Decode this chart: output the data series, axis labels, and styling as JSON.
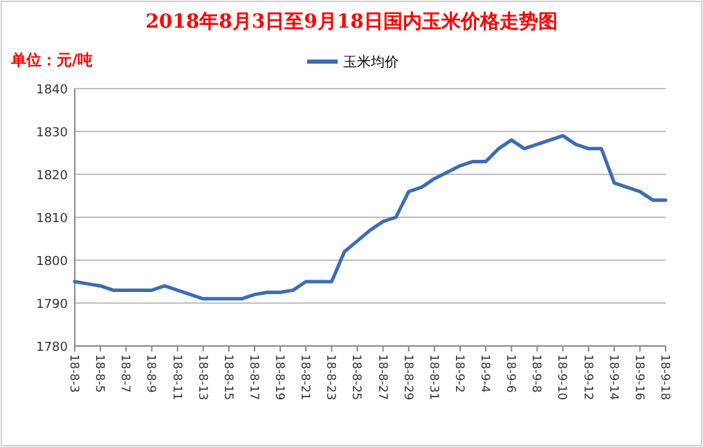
{
  "chart_data": {
    "type": "line",
    "title": "2018年8月3日至9月18日国内玉米价格走势图",
    "ylabel": "单位：元/吨",
    "categories": [
      "18-8-3",
      null,
      "18-8-5",
      null,
      "18-8-7",
      null,
      "18-8-9",
      null,
      "18-8-11",
      null,
      "18-8-13",
      null,
      "18-8-15",
      null,
      "18-8-17",
      null,
      "18-8-19",
      null,
      "18-8-21",
      null,
      "18-8-23",
      null,
      "18-8-25",
      null,
      "18-8-27",
      null,
      "18-8-29",
      null,
      "18-8-31",
      null,
      "18-9-2",
      null,
      "18-9-4",
      null,
      "18-9-6",
      null,
      "18-9-8",
      null,
      "18-9-10",
      null,
      "18-9-12",
      null,
      "18-9-14",
      null,
      "18-9-16",
      null,
      "18-9-18"
    ],
    "series": [
      {
        "name": "玉米均价",
        "color": "#3d6cb4",
        "values": [
          1795,
          1794.5,
          1794,
          1793,
          1793,
          1793,
          1793,
          1794,
          1793,
          1792,
          1791,
          1791,
          1791,
          1791,
          1792,
          1792.5,
          1792.5,
          1793,
          1795,
          1795,
          1795,
          1802,
          1804.5,
          1807,
          1809,
          1810,
          1816,
          1817,
          1819,
          1820.5,
          1822,
          1823,
          1823,
          1826,
          1828,
          1826,
          1827,
          1828,
          1829,
          1827,
          1826,
          1826,
          1818,
          1817,
          1816,
          1814,
          1814
        ]
      }
    ],
    "ylim": [
      1780,
      1840
    ],
    "yticks": [
      1780,
      1790,
      1800,
      1810,
      1820,
      1830,
      1840
    ],
    "grid": "y",
    "legend": "top",
    "marker": "none"
  }
}
